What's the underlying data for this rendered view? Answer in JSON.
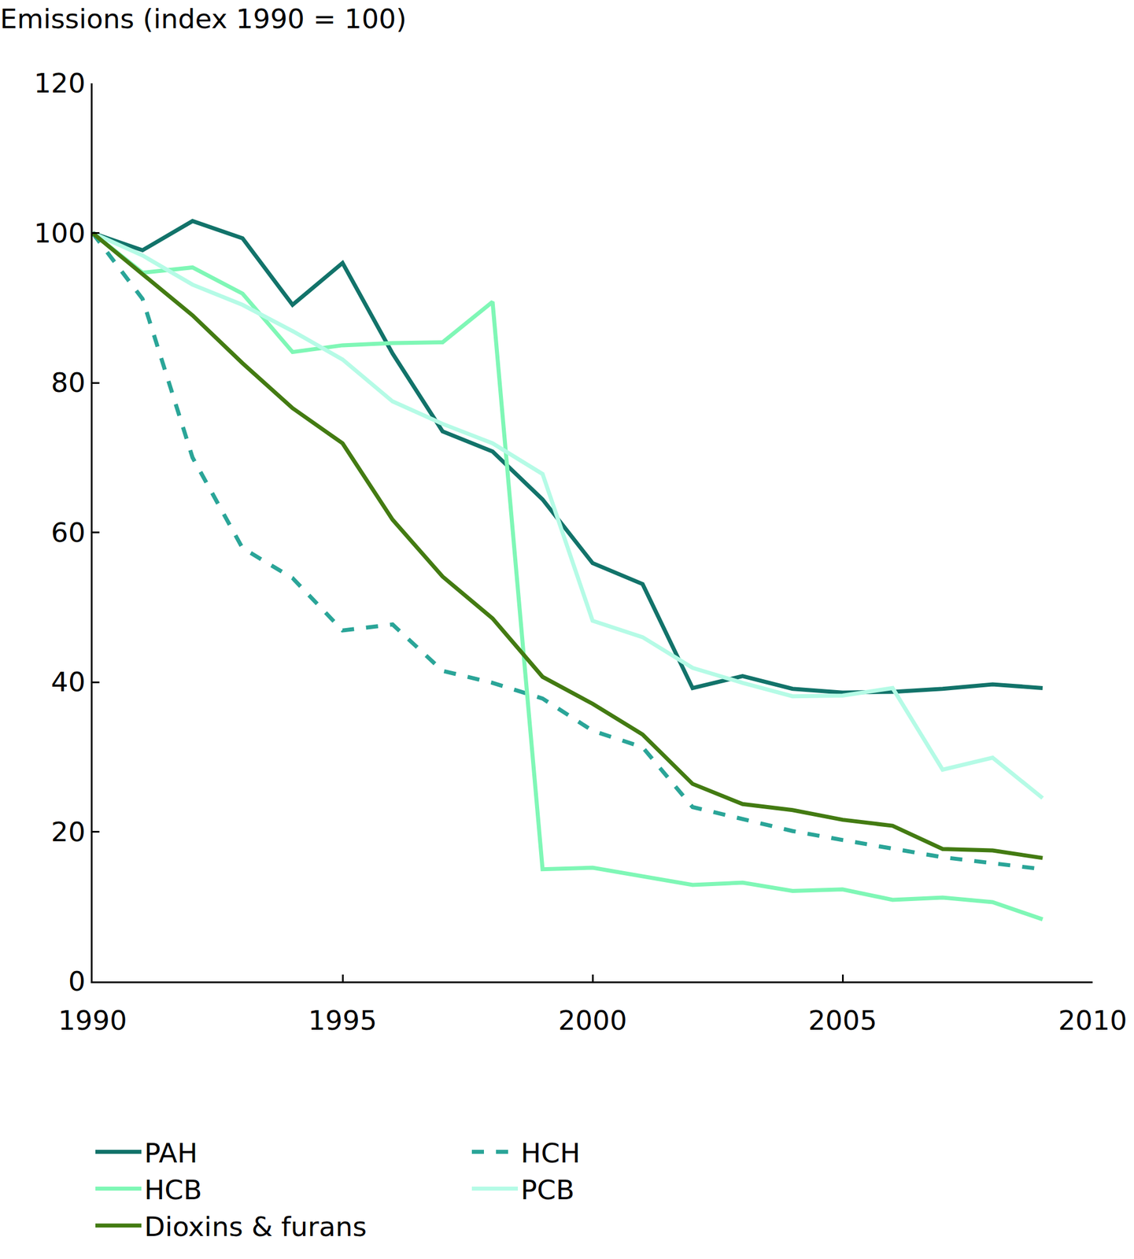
{
  "chart_data": {
    "type": "line",
    "ylabel": "Emissions (index 1990 = 100)",
    "x": [
      1990,
      1991,
      1992,
      1993,
      1994,
      1995,
      1996,
      1997,
      1998,
      1999,
      2000,
      2001,
      2002,
      2003,
      2004,
      2005,
      2006,
      2007,
      2008,
      2009
    ],
    "series": [
      {
        "name": "PAH",
        "color": "#12736a",
        "line_style": "solid",
        "values": [
          100,
          97.7,
          101.6,
          99.3,
          90.4,
          96,
          83.9,
          73.5,
          70.8,
          64.4,
          55.9,
          53.1,
          39.2,
          40.8,
          39.1,
          38.6,
          38.7,
          39.1,
          39.7,
          39.2
        ]
      },
      {
        "name": "HCH",
        "color": "#2aa598",
        "line_style": "dash",
        "values": [
          100,
          91.2,
          70,
          57.9,
          53.9,
          46.9,
          47.7,
          41.5,
          39.9,
          37.8,
          33.5,
          31.3,
          23.3,
          21.7,
          20.1,
          18.9,
          17.7,
          16.6,
          15.8,
          15
        ]
      },
      {
        "name": "HCB",
        "color": "#7ff7b6",
        "line_style": "solid",
        "values": [
          100,
          94.7,
          95.4,
          91.9,
          84.1,
          85,
          85.3,
          85.4,
          90.8,
          15,
          15.2,
          14,
          12.9,
          13.2,
          12.1,
          12.3,
          10.9,
          11.2,
          10.6,
          8.3
        ]
      },
      {
        "name": "PCB",
        "color": "#b5fbe6",
        "line_style": "solid",
        "values": [
          100,
          97,
          93.1,
          90.4,
          86.9,
          83.1,
          77.5,
          74.5,
          71.9,
          67.8,
          48.2,
          46,
          41.9,
          39.9,
          38.1,
          38.2,
          39.2,
          28.3,
          29.9,
          24.5
        ]
      },
      {
        "name": "Dioxins & furans",
        "color": "#437b12",
        "line_style": "solid",
        "values": [
          100,
          94.5,
          89,
          82.6,
          76.6,
          71.9,
          61.7,
          54.1,
          48.5,
          40.7,
          37.1,
          33,
          26.4,
          23.7,
          22.9,
          21.6,
          20.8,
          17.7,
          17.5,
          16.5
        ]
      }
    ],
    "xlim": [
      1990,
      2010
    ],
    "xticks": [
      1990,
      1995,
      2000,
      2005,
      2010
    ],
    "ylim": [
      0,
      120
    ],
    "yticks": [
      0,
      20,
      40,
      60,
      80,
      100,
      120
    ],
    "grid": false,
    "legend": "bottom"
  }
}
